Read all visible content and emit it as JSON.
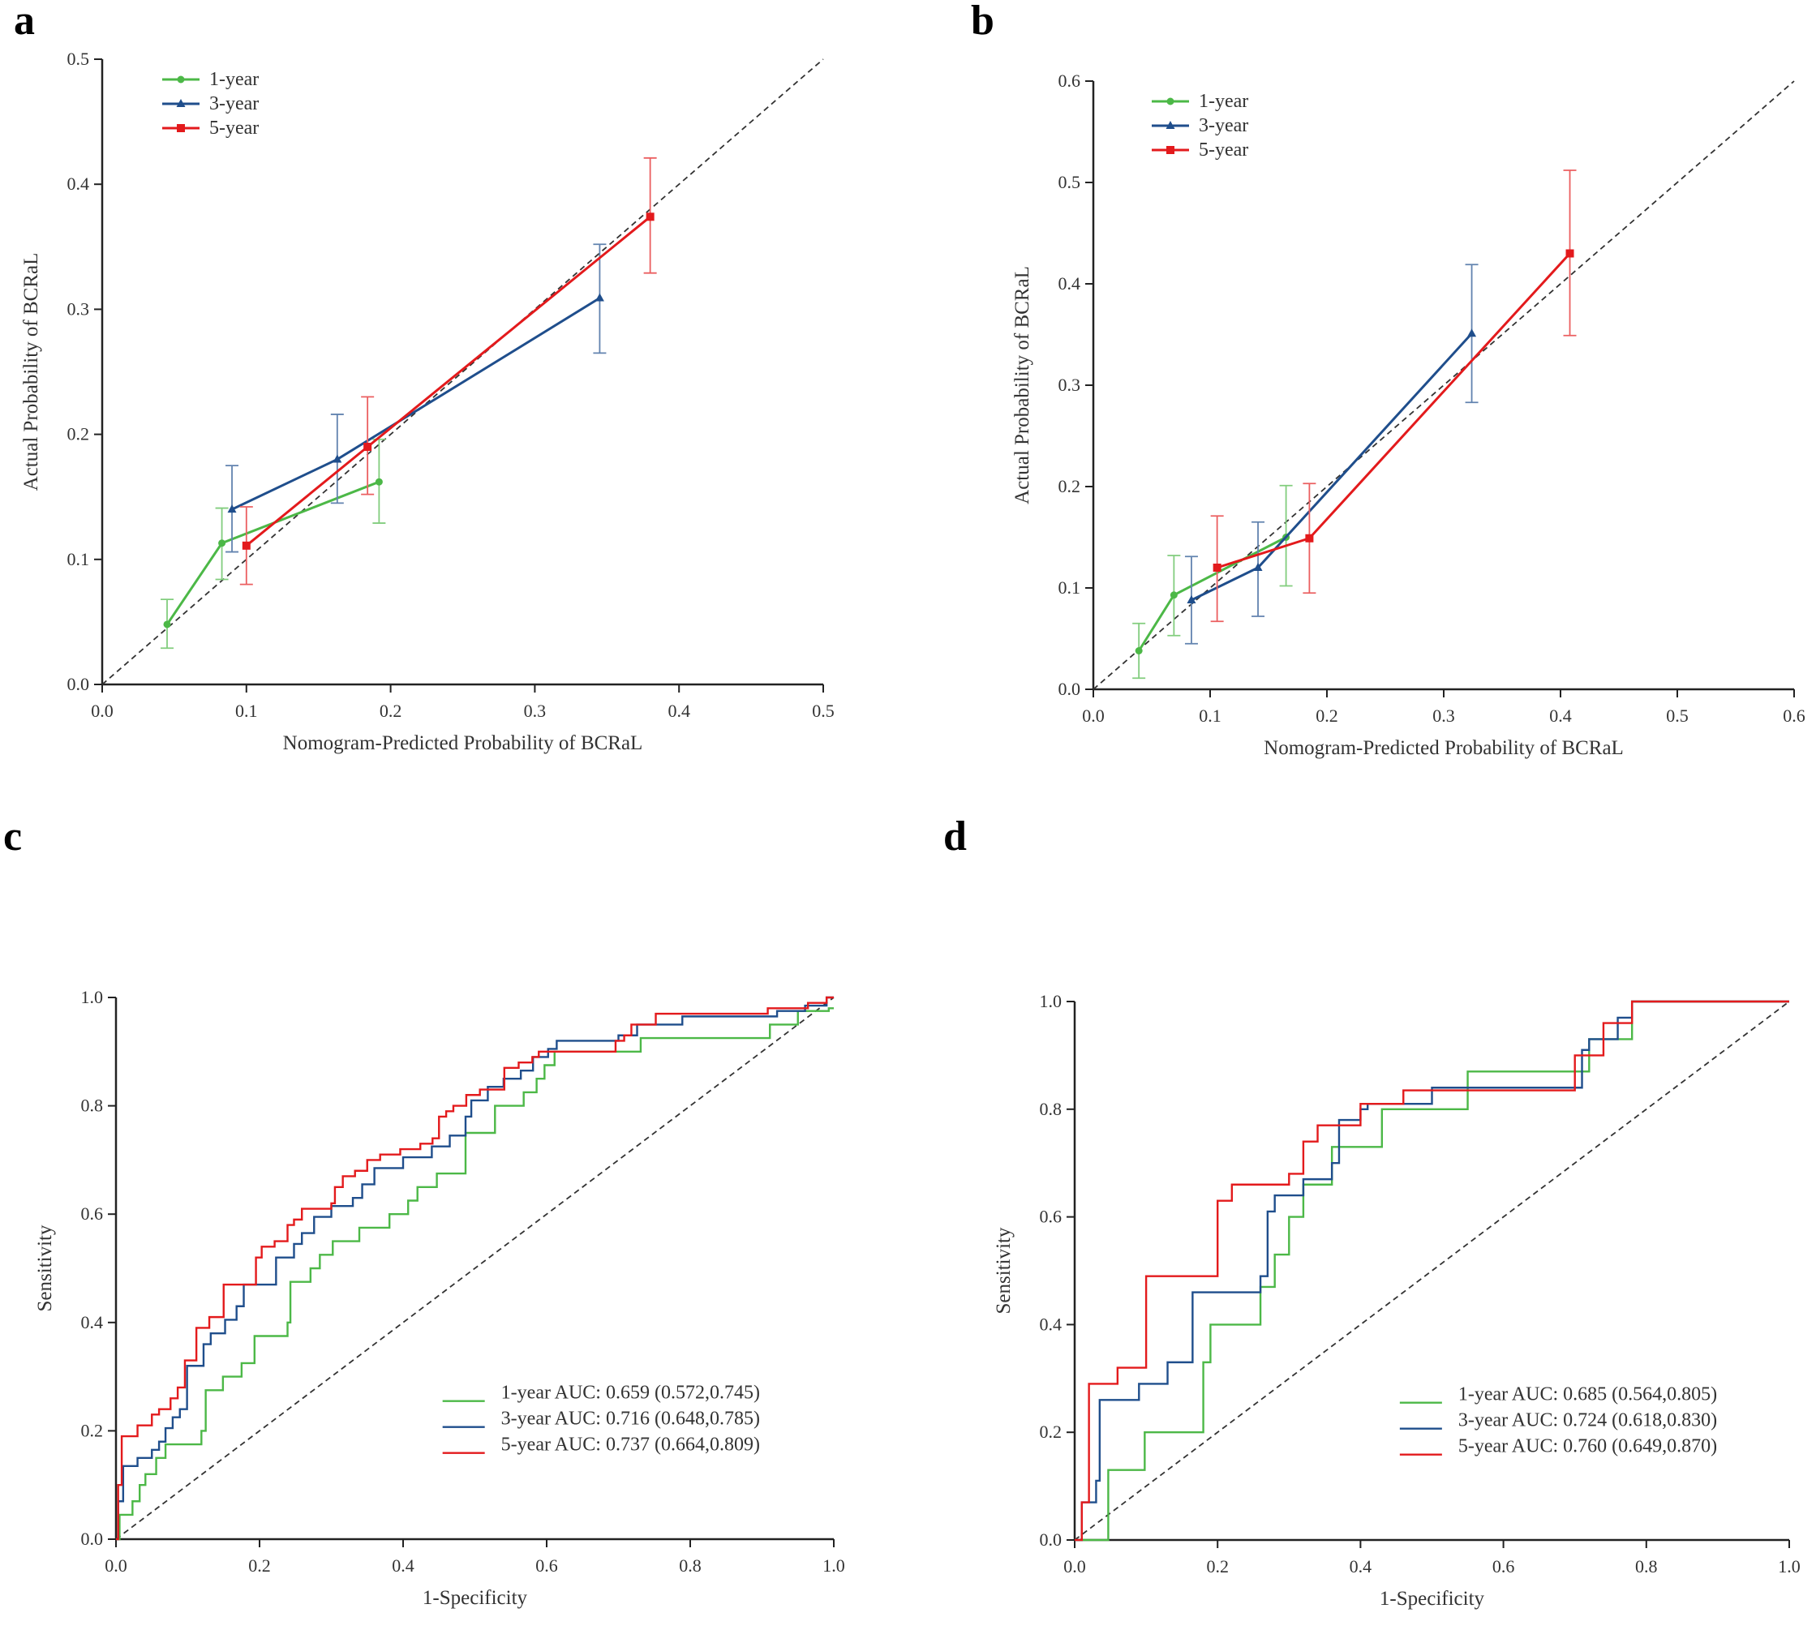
{
  "colors": {
    "1-year": "#4cb847",
    "3-year": "#1f4e8c",
    "5-year": "#e31a1c",
    "diagonal": "#333333"
  },
  "chart_data": [
    {
      "panel": "a",
      "type": "line",
      "subtype": "calibration",
      "xlabel": "Nomogram-Predicted Probability of  BCRaL",
      "ylabel": "Actual Probability of  BCRaL",
      "xlim": [
        0,
        0.5
      ],
      "ylim": [
        0,
        0.5
      ],
      "xticks": [
        "0.0",
        "0.1",
        "0.2",
        "0.3",
        "0.4",
        "0.5"
      ],
      "yticks": [
        "0.0",
        "0.1",
        "0.2",
        "0.3",
        "0.4",
        "0.5"
      ],
      "legend_position": "top-left",
      "reference_line": "diagonal dashed",
      "series": [
        {
          "name": "1-year",
          "marker": "circle",
          "points": [
            [
              0.045,
              0.048,
              0.029,
              0.068
            ],
            [
              0.083,
              0.113,
              0.084,
              0.141
            ],
            [
              0.192,
              0.162,
              0.129,
              0.196
            ]
          ]
        },
        {
          "name": "3-year",
          "marker": "triangle",
          "points": [
            [
              0.09,
              0.14,
              0.106,
              0.175
            ],
            [
              0.163,
              0.18,
              0.145,
              0.216
            ],
            [
              0.345,
              0.309,
              0.265,
              0.352
            ]
          ]
        },
        {
          "name": "5-year",
          "marker": "square",
          "points": [
            [
              0.1,
              0.111,
              0.08,
              0.142
            ],
            [
              0.184,
              0.19,
              0.152,
              0.23
            ],
            [
              0.38,
              0.374,
              0.329,
              0.421
            ]
          ]
        }
      ]
    },
    {
      "panel": "b",
      "type": "line",
      "subtype": "calibration",
      "xlabel": "Nomogram-Predicted Probability of  BCRaL",
      "ylabel": "Actual Probability of  BCRaL",
      "xlim": [
        0,
        0.6
      ],
      "ylim": [
        0,
        0.6
      ],
      "xticks": [
        "0.0",
        "0.1",
        "0.2",
        "0.3",
        "0.4",
        "0.5",
        "0.6"
      ],
      "yticks": [
        "0.0",
        "0.1",
        "0.2",
        "0.3",
        "0.4",
        "0.5",
        "0.6"
      ],
      "legend_position": "top-left",
      "reference_line": "diagonal dashed",
      "series": [
        {
          "name": "1-year",
          "marker": "circle",
          "points": [
            [
              0.039,
              0.038,
              0.011,
              0.065
            ],
            [
              0.069,
              0.093,
              0.053,
              0.132
            ],
            [
              0.165,
              0.15,
              0.102,
              0.201
            ]
          ]
        },
        {
          "name": "3-year",
          "marker": "triangle",
          "points": [
            [
              0.084,
              0.088,
              0.045,
              0.131
            ],
            [
              0.141,
              0.12,
              0.072,
              0.165
            ],
            [
              0.324,
              0.351,
              0.283,
              0.419
            ]
          ]
        },
        {
          "name": "5-year",
          "marker": "square",
          "points": [
            [
              0.106,
              0.12,
              0.067,
              0.171
            ],
            [
              0.185,
              0.149,
              0.095,
              0.203
            ],
            [
              0.408,
              0.43,
              0.349,
              0.512
            ]
          ]
        }
      ]
    },
    {
      "panel": "c",
      "type": "line",
      "subtype": "roc",
      "xlabel": "1-Specificity",
      "ylabel": "Sensitivity",
      "xlim": [
        0,
        1
      ],
      "ylim": [
        0,
        1
      ],
      "xticks": [
        "0.0",
        "0.2",
        "0.4",
        "0.6",
        "0.8",
        "1.0"
      ],
      "yticks": [
        "0.0",
        "0.2",
        "0.4",
        "0.6",
        "0.8",
        "1.0"
      ],
      "legend_position": "bottom-right",
      "reference_line": "diagonal dashed",
      "series": [
        {
          "name": "1-year",
          "legend": "1-year AUC: 0.659 (0.572,0.745)",
          "steps": [
            [
              0.005,
              0.045
            ],
            [
              0.023,
              0.07
            ],
            [
              0.033,
              0.1
            ],
            [
              0.041,
              0.12
            ],
            [
              0.056,
              0.15
            ],
            [
              0.069,
              0.175
            ],
            [
              0.119,
              0.2
            ],
            [
              0.125,
              0.275
            ],
            [
              0.149,
              0.3
            ],
            [
              0.175,
              0.325
            ],
            [
              0.193,
              0.375
            ],
            [
              0.239,
              0.4
            ],
            [
              0.243,
              0.475
            ],
            [
              0.271,
              0.5
            ],
            [
              0.284,
              0.525
            ],
            [
              0.302,
              0.55
            ],
            [
              0.339,
              0.575
            ],
            [
              0.381,
              0.6
            ],
            [
              0.407,
              0.625
            ],
            [
              0.42,
              0.65
            ],
            [
              0.447,
              0.675
            ],
            [
              0.487,
              0.75
            ],
            [
              0.528,
              0.8
            ],
            [
              0.568,
              0.825
            ],
            [
              0.586,
              0.85
            ],
            [
              0.597,
              0.875
            ],
            [
              0.611,
              0.9
            ],
            [
              0.731,
              0.925
            ],
            [
              0.911,
              0.95
            ],
            [
              0.95,
              0.975
            ],
            [
              0.993,
              0.98
            ]
          ]
        },
        {
          "name": "3-year",
          "legend": "3-year AUC: 0.716 (0.648,0.785)",
          "steps": [
            [
              0.003,
              0.07
            ],
            [
              0.01,
              0.135
            ],
            [
              0.03,
              0.15
            ],
            [
              0.05,
              0.165
            ],
            [
              0.06,
              0.18
            ],
            [
              0.069,
              0.205
            ],
            [
              0.079,
              0.225
            ],
            [
              0.089,
              0.24
            ],
            [
              0.099,
              0.32
            ],
            [
              0.122,
              0.36
            ],
            [
              0.132,
              0.38
            ],
            [
              0.152,
              0.405
            ],
            [
              0.168,
              0.43
            ],
            [
              0.178,
              0.47
            ],
            [
              0.223,
              0.52
            ],
            [
              0.248,
              0.545
            ],
            [
              0.259,
              0.565
            ],
            [
              0.276,
              0.595
            ],
            [
              0.3,
              0.615
            ],
            [
              0.33,
              0.63
            ],
            [
              0.343,
              0.655
            ],
            [
              0.36,
              0.685
            ],
            [
              0.4,
              0.705
            ],
            [
              0.44,
              0.725
            ],
            [
              0.465,
              0.745
            ],
            [
              0.487,
              0.78
            ],
            [
              0.495,
              0.81
            ],
            [
              0.518,
              0.835
            ],
            [
              0.54,
              0.85
            ],
            [
              0.564,
              0.865
            ],
            [
              0.581,
              0.89
            ],
            [
              0.602,
              0.905
            ],
            [
              0.614,
              0.92
            ],
            [
              0.7,
              0.93
            ],
            [
              0.726,
              0.95
            ],
            [
              0.789,
              0.965
            ],
            [
              0.921,
              0.975
            ],
            [
              0.96,
              0.985
            ],
            [
              0.99,
              1.0
            ]
          ]
        },
        {
          "name": "5-year",
          "legend": "5-year AUC: 0.737 (0.664,0.809)",
          "steps": [
            [
              0.003,
              0.1
            ],
            [
              0.008,
              0.19
            ],
            [
              0.03,
              0.21
            ],
            [
              0.05,
              0.23
            ],
            [
              0.06,
              0.24
            ],
            [
              0.076,
              0.26
            ],
            [
              0.086,
              0.28
            ],
            [
              0.096,
              0.33
            ],
            [
              0.112,
              0.39
            ],
            [
              0.13,
              0.41
            ],
            [
              0.15,
              0.47
            ],
            [
              0.195,
              0.52
            ],
            [
              0.203,
              0.54
            ],
            [
              0.221,
              0.55
            ],
            [
              0.239,
              0.58
            ],
            [
              0.248,
              0.59
            ],
            [
              0.259,
              0.61
            ],
            [
              0.3,
              0.62
            ],
            [
              0.305,
              0.65
            ],
            [
              0.316,
              0.67
            ],
            [
              0.333,
              0.68
            ],
            [
              0.35,
              0.7
            ],
            [
              0.368,
              0.71
            ],
            [
              0.396,
              0.72
            ],
            [
              0.424,
              0.73
            ],
            [
              0.441,
              0.74
            ],
            [
              0.45,
              0.78
            ],
            [
              0.46,
              0.79
            ],
            [
              0.47,
              0.8
            ],
            [
              0.488,
              0.82
            ],
            [
              0.507,
              0.83
            ],
            [
              0.541,
              0.87
            ],
            [
              0.561,
              0.88
            ],
            [
              0.58,
              0.89
            ],
            [
              0.589,
              0.9
            ],
            [
              0.696,
              0.92
            ],
            [
              0.708,
              0.93
            ],
            [
              0.718,
              0.95
            ],
            [
              0.752,
              0.97
            ],
            [
              0.908,
              0.98
            ],
            [
              0.964,
              0.99
            ],
            [
              0.99,
              1.0
            ]
          ]
        }
      ]
    },
    {
      "panel": "d",
      "type": "line",
      "subtype": "roc",
      "xlabel": "1-Specificity",
      "ylabel": "Sensitivity",
      "xlim": [
        0,
        1
      ],
      "ylim": [
        0,
        1
      ],
      "xticks": [
        "0.0",
        "0.2",
        "0.4",
        "0.6",
        "0.8",
        "1.0"
      ],
      "yticks": [
        "0.0",
        "0.2",
        "0.4",
        "0.6",
        "0.8",
        "1.0"
      ],
      "legend_position": "bottom-right",
      "reference_line": "diagonal dashed",
      "series": [
        {
          "name": "1-year",
          "legend": "1-year AUC: 0.685 (0.564,0.805)",
          "steps": [
            [
              0.047,
              0.13
            ],
            [
              0.098,
              0.2
            ],
            [
              0.18,
              0.33
            ],
            [
              0.19,
              0.4
            ],
            [
              0.26,
              0.47
            ],
            [
              0.28,
              0.53
            ],
            [
              0.3,
              0.6
            ],
            [
              0.32,
              0.66
            ],
            [
              0.36,
              0.73
            ],
            [
              0.43,
              0.8
            ],
            [
              0.55,
              0.87
            ],
            [
              0.72,
              0.93
            ],
            [
              0.78,
              1.0
            ]
          ]
        },
        {
          "name": "3-year",
          "legend": "3-year AUC: 0.724 (0.618,0.830)",
          "steps": [
            [
              0.01,
              0.07
            ],
            [
              0.03,
              0.11
            ],
            [
              0.035,
              0.26
            ],
            [
              0.09,
              0.29
            ],
            [
              0.13,
              0.33
            ],
            [
              0.165,
              0.46
            ],
            [
              0.26,
              0.49
            ],
            [
              0.27,
              0.61
            ],
            [
              0.28,
              0.64
            ],
            [
              0.32,
              0.67
            ],
            [
              0.36,
              0.7
            ],
            [
              0.37,
              0.78
            ],
            [
              0.4,
              0.8
            ],
            [
              0.41,
              0.81
            ],
            [
              0.5,
              0.84
            ],
            [
              0.71,
              0.91
            ],
            [
              0.72,
              0.93
            ],
            [
              0.76,
              0.97
            ],
            [
              0.78,
              1.0
            ]
          ]
        },
        {
          "name": "5-year",
          "legend": "5-year AUC: 0.760 (0.649,0.870)",
          "steps": [
            [
              0.01,
              0.07
            ],
            [
              0.02,
              0.145
            ],
            [
              0.02,
              0.29
            ],
            [
              0.06,
              0.32
            ],
            [
              0.1,
              0.49
            ],
            [
              0.2,
              0.63
            ],
            [
              0.22,
              0.66
            ],
            [
              0.3,
              0.68
            ],
            [
              0.32,
              0.74
            ],
            [
              0.34,
              0.77
            ],
            [
              0.4,
              0.81
            ],
            [
              0.46,
              0.835
            ],
            [
              0.7,
              0.9
            ],
            [
              0.74,
              0.96
            ],
            [
              0.78,
              1.0
            ]
          ]
        }
      ]
    }
  ]
}
